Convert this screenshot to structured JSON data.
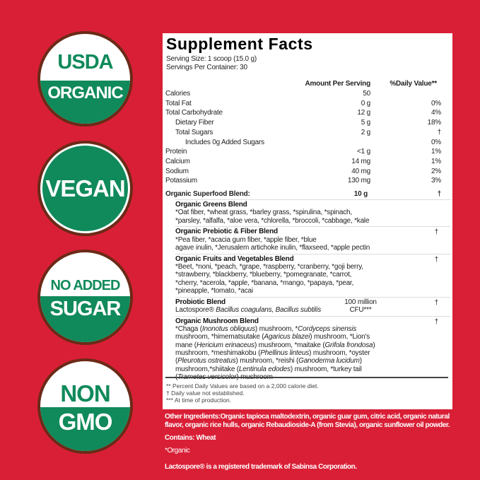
{
  "badges": [
    {
      "top": "USDA",
      "bottom": "ORGANIC"
    },
    {
      "text": "VEGAN"
    },
    {
      "top": "NO ADDED",
      "bottom": "SUGAR"
    },
    {
      "top": "NON",
      "bottom": "GMO"
    }
  ],
  "colors": {
    "background": "#d91f36",
    "badge_green": "#108a5b",
    "badge_ring": "#6b2a17"
  },
  "facts": {
    "title": "Supplement Facts",
    "serving_size": "Serving Size: 1 scoop (15.0 g)",
    "servings_per_container": "Servings Per Container: 30",
    "col_amount": "Amount Per Serving",
    "col_dv": "%Daily Value**",
    "rows": [
      {
        "name": "Calories",
        "amount": "50",
        "dv": ""
      },
      {
        "name": "Total Fat",
        "amount": "0 g",
        "dv": "0%"
      },
      {
        "name": "Total Carbohydrate",
        "amount": "12 g",
        "dv": "4%"
      },
      {
        "name": "Dietary Fiber",
        "amount": "5 g",
        "dv": "18%"
      },
      {
        "name": "Total Sugars",
        "amount": "2 g",
        "dv": "†"
      },
      {
        "name": "Includes 0g Added Sugars",
        "amount": "",
        "dv": "0%"
      },
      {
        "name": "Protein",
        "amount": "<1 g",
        "dv": "1%"
      },
      {
        "name": "Calcium",
        "amount": "14 mg",
        "dv": "1%"
      },
      {
        "name": "Sodium",
        "amount": "40 mg",
        "dv": "2%"
      },
      {
        "name": "Potassium",
        "amount": "130 mg",
        "dv": "3%"
      }
    ],
    "superfood": {
      "name": "Organic Superfood Blend:",
      "amount": "10 g",
      "dv": "†"
    },
    "blends": [
      {
        "name": "Organic Greens Blend",
        "dv": "",
        "amount": "",
        "lines": [
          [
            {
              "t": "*Oat fiber, *wheat grass, *barley grass, *spirulina, *spinach,"
            }
          ],
          [
            {
              "t": "*parsley, *alfalfa, *aloe vera, *chlorella, *broccoli, *cabbage, *kale"
            }
          ]
        ]
      },
      {
        "name": "Organic Prebiotic & Fiber Blend",
        "dv": "†",
        "amount": "",
        "lines": [
          [
            {
              "t": "*Pea fiber, *acacia gum fiber, *apple fiber, *blue"
            }
          ],
          [
            {
              "t": " agave inulin, *Jerusalem artichoke inulin, *flaxseed, *apple pectin"
            }
          ]
        ]
      },
      {
        "name": "Organic Fruits and Vegetables Blend",
        "dv": "†",
        "amount": "",
        "lines": [
          [
            {
              "t": " *Beet, *noni, *peach, *grape, *raspberry, *cranberry, *goji berry,"
            }
          ],
          [
            {
              "t": " *strawberry, *blackberry, *blueberry, *pomegranate, *carrot,"
            }
          ],
          [
            {
              "t": " *cherry, *acerola, *apple, *banana, *mango, *papaya, *pear,"
            }
          ],
          [
            {
              "t": " *pineapple, *tomato, *acai"
            }
          ]
        ]
      },
      {
        "name": "Probiotic Blend",
        "dv": "†",
        "amount": "100 million CFU***",
        "lines": [
          [
            {
              "t": "Lactospore® "
            },
            {
              "t": "Bacillus coagulans, Bacillus subtilis",
              "i": true
            }
          ]
        ]
      },
      {
        "name": "Organic Mushroom Blend",
        "dv": "†",
        "amount": "",
        "lines": [
          [
            {
              "t": "*Chaga ("
            },
            {
              "t": "Inonotus obliquus",
              "i": true
            },
            {
              "t": ") mushroom, *"
            },
            {
              "t": "Cordyceps sinensis",
              "i": true
            }
          ],
          [
            {
              "t": "mushroom, *himematsutake ("
            },
            {
              "t": "Agaricus blazei",
              "i": true
            },
            {
              "t": ") mushroom, *Lion's"
            }
          ],
          [
            {
              "t": "mane ("
            },
            {
              "t": "Hericium erinaceus",
              "i": true
            },
            {
              "t": ") mushroom, *maitake ("
            },
            {
              "t": "Grifola frondosa",
              "i": true
            },
            {
              "t": ")"
            }
          ],
          [
            {
              "t": "mushroom, *meshimakobu ("
            },
            {
              "t": "Phellinus linteus",
              "i": true
            },
            {
              "t": ") mushroom, *oyster"
            }
          ],
          [
            {
              "t": "("
            },
            {
              "t": "Pleurotus ostreatus",
              "i": true
            },
            {
              "t": ") mushroom, *reishi ("
            },
            {
              "t": "Ganoderma lucidum",
              "i": true
            },
            {
              "t": ")"
            }
          ],
          [
            {
              "t": "mushroom,*shiitake ("
            },
            {
              "t": "Lentinula edodes",
              "i": true
            },
            {
              "t": ") mushroom, *turkey tail"
            }
          ],
          [
            {
              "t": "("
            },
            {
              "t": "Trametes versicolor",
              "i": true
            },
            {
              "t": ") mushroom"
            }
          ]
        ]
      }
    ],
    "footnotes": [
      "** Percent Daily Values are based on a 2,000 calorie diet.",
      "† Daily value not established.",
      "*** At time of production."
    ]
  },
  "other": {
    "ingredients": "Other Ingredients:Organic tapioca maltodextrin, organic guar gum, citric acid, organic natural flavor, organic rice hulls, organic Rebaudioside-A (from Stevia), organic sunflower oil powder.",
    "contains": "Contains: Wheat",
    "organic_note": "*Organic",
    "trademark": "Lactospore® is a registered trademark of Sabinsa Corporation."
  }
}
